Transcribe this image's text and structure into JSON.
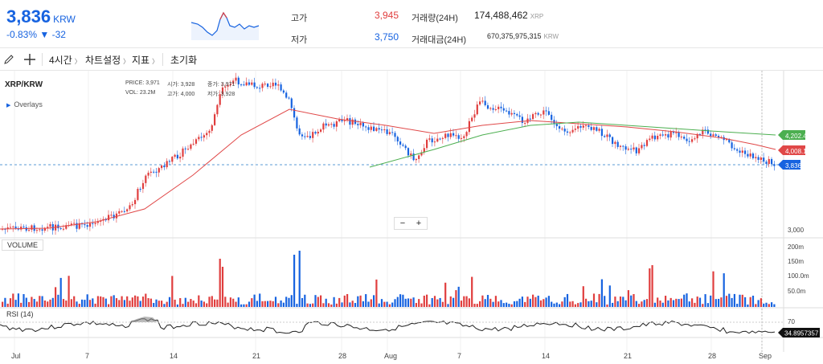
{
  "header": {
    "price": "3,836",
    "currency": "KRW",
    "change_pct": "-0.83%",
    "change_abs": "▼ -32",
    "high_label": "고가",
    "high_value": "3,945",
    "low_label": "저가",
    "low_value": "3,750",
    "volume_label": "거래량(24H)",
    "volume_value": "174,488,462",
    "volume_unit": "XRP",
    "amount_label": "거래대금(24H)",
    "amount_value": "670,375,975,315",
    "amount_unit": "KRW"
  },
  "toolbar": {
    "pencil_icon": "pencil-icon",
    "crosshair_icon": "crosshair-icon",
    "interval": "4시간",
    "chart_settings": "차트설정",
    "indicators": "지표",
    "reset": "초기화"
  },
  "chart": {
    "symbol": "XRP/KRW",
    "overlays_label": "Overlays",
    "ohlc": {
      "price_label": "PRICE:",
      "price": "3,971",
      "open_label": "시가:",
      "open": "3,928",
      "close_label": "종가:",
      "close": "3,971",
      "vol_label": "VOL:",
      "vol": "23.2M",
      "high_label": "고가:",
      "high": "4,000",
      "low_label": "저가:",
      "low": "3,928"
    },
    "price_tags": {
      "green": "4,202.4",
      "red": "4,008.1",
      "blue": "3,836"
    },
    "y_tick": "3,000",
    "zoom_minus": "−",
    "zoom_plus": "+",
    "volume_label": "VOLUME",
    "volume_ticks": [
      "200m",
      "150m",
      "100.0m",
      "50.0m"
    ],
    "rsi_label": "RSI (14)",
    "rsi_tick": "70",
    "rsi_value": "34.8957357",
    "x_ticks": [
      "Jul",
      "7",
      "14",
      "21",
      "28",
      "Aug",
      "7",
      "14",
      "21",
      "28",
      "Sep"
    ],
    "colors": {
      "up": "#e03e3e",
      "down": "#1763e0",
      "ma_red": "#e04848",
      "ma_green": "#4caf50"
    }
  }
}
